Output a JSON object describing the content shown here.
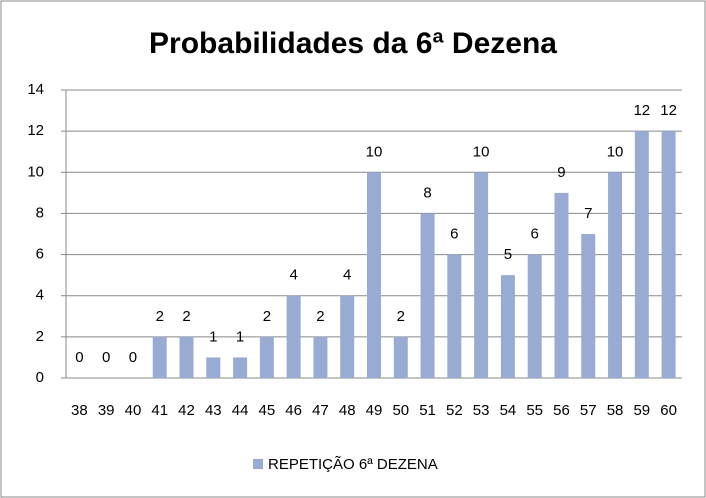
{
  "chart_data": {
    "type": "bar",
    "title": "Probabilidades da 6ª Dezena",
    "categories": [
      "38",
      "39",
      "40",
      "41",
      "42",
      "43",
      "44",
      "45",
      "46",
      "47",
      "48",
      "49",
      "50",
      "51",
      "52",
      "53",
      "54",
      "55",
      "56",
      "57",
      "58",
      "59",
      "60"
    ],
    "series": [
      {
        "name": "REPETIÇÃO 6ª DEZENA",
        "color": "#98abd3",
        "values": [
          0,
          0,
          0,
          2,
          2,
          1,
          1,
          2,
          4,
          2,
          4,
          10,
          2,
          8,
          6,
          10,
          5,
          6,
          9,
          7,
          10,
          12,
          12
        ]
      }
    ],
    "ylim": [
      0,
      14
    ],
    "yticks": [
      0,
      2,
      4,
      6,
      8,
      10,
      12,
      14
    ],
    "grid": true,
    "legend": "bottom"
  }
}
